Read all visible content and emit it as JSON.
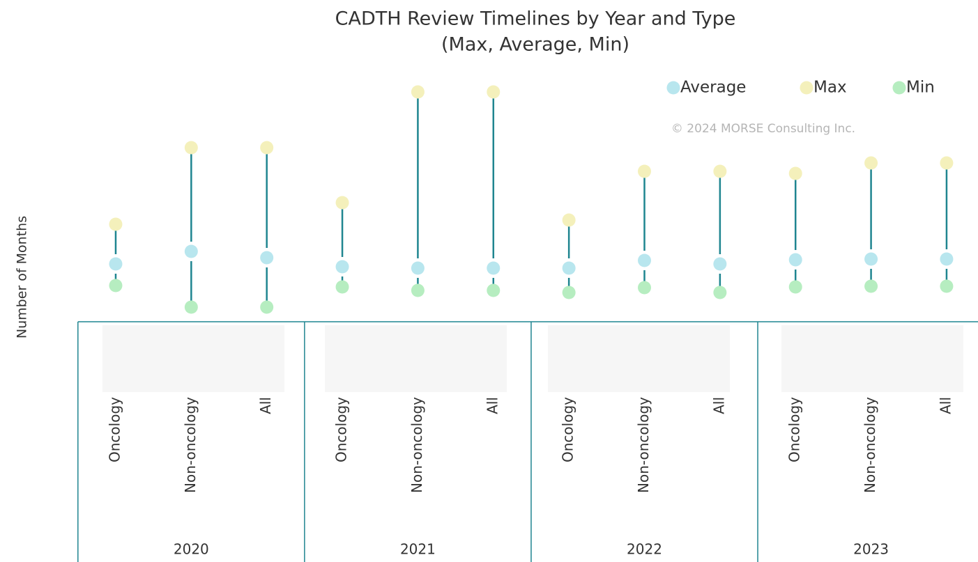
{
  "chart_data": {
    "type": "dumbbell",
    "title": "CADTH Review Timelines by Year and Type",
    "subtitle": "(Max, Average, Min)",
    "y_label": "Number of Months",
    "annotation": "© 2024 MORSE Consulting Inc.",
    "categories": [
      "Oncology",
      "Non-oncology",
      "All",
      "Oncology",
      "Non-oncology",
      "All",
      "Oncology",
      "Non-oncology",
      "All",
      "Oncology",
      "Non-oncology",
      "All"
    ],
    "groups": [
      "2020",
      "2021",
      "2022",
      "2023"
    ],
    "series": [
      {
        "name": "Average",
        "color": "#b8e6ee",
        "values": [
          8.3,
          10.1,
          9.2,
          7.9,
          7.7,
          7.7,
          7.7,
          8.8,
          8.3,
          8.9,
          9.0,
          9.0
        ]
      },
      {
        "name": "Max",
        "color": "#f4f0bb",
        "values": [
          14.0,
          25.0,
          25.0,
          17.1,
          33.0,
          33.0,
          14.6,
          21.6,
          21.6,
          21.3,
          22.8,
          22.8
        ]
      },
      {
        "name": "Min",
        "color": "#b6edc0",
        "values": [
          5.2,
          2.1,
          2.1,
          5.0,
          4.5,
          4.5,
          4.2,
          4.9,
          4.2,
          5.0,
          5.1,
          5.1
        ]
      }
    ],
    "line_color": "#1f8590",
    "ylim": [
      0,
      35
    ]
  }
}
